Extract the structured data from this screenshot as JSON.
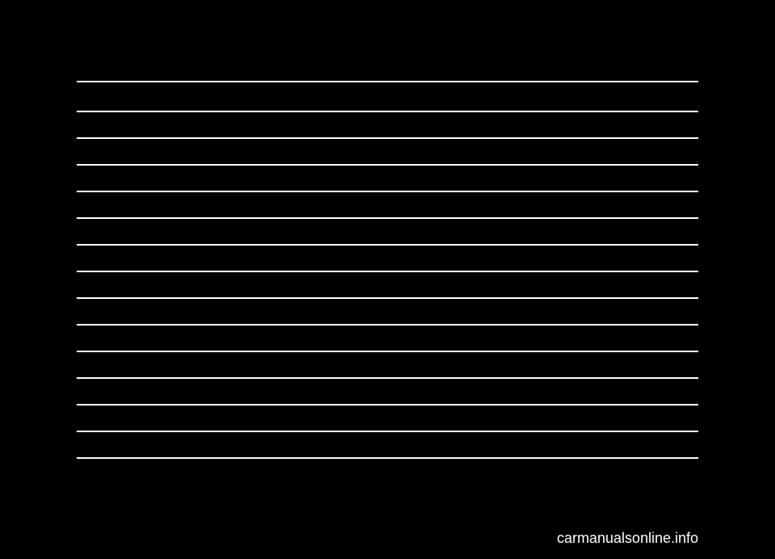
{
  "page": {
    "line_count": 15,
    "line_color": "#ffffff",
    "background_color": "#000000",
    "watermark_text": "carmanualsonline.info"
  }
}
